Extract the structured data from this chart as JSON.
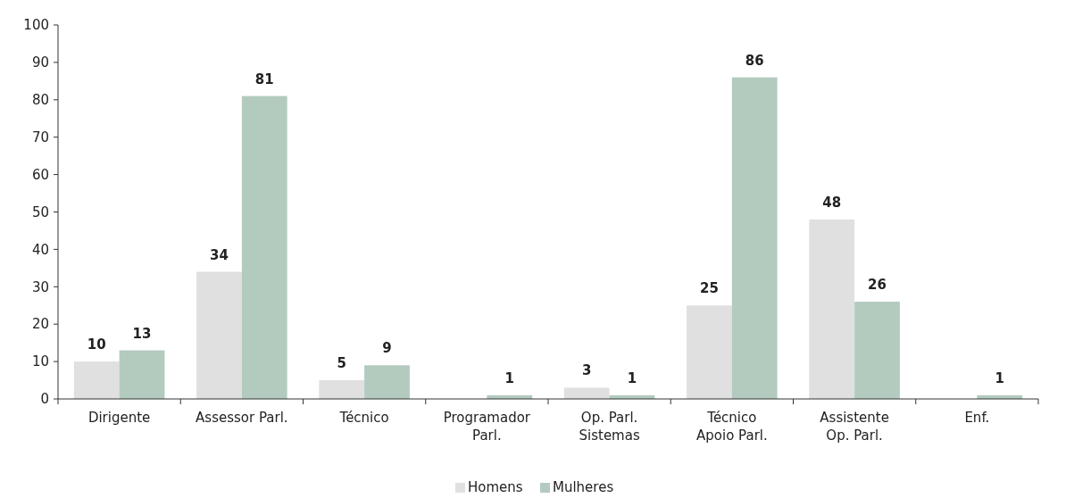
{
  "chart_data": {
    "type": "bar",
    "categories": [
      "Dirigente",
      "Assessor Parl.",
      "Técnico",
      "Programador\nParl.",
      "Op. Parl.\nSistemas",
      "Técnico\nApoio Parl.",
      "Assistente\nOp. Parl.",
      "Enf."
    ],
    "series": [
      {
        "name": "Homens",
        "color": "#e0e0e0",
        "values": [
          10,
          34,
          5,
          null,
          3,
          25,
          48,
          null
        ]
      },
      {
        "name": "Mulheres",
        "color": "#b3cbbf",
        "values": [
          13,
          81,
          9,
          1,
          1,
          86,
          26,
          1
        ]
      }
    ],
    "ylim": [
      0,
      100
    ],
    "yticks": [
      0,
      10,
      20,
      30,
      40,
      50,
      60,
      70,
      80,
      90,
      100
    ],
    "grid": false,
    "legend": "bottom",
    "data_labels": true
  }
}
